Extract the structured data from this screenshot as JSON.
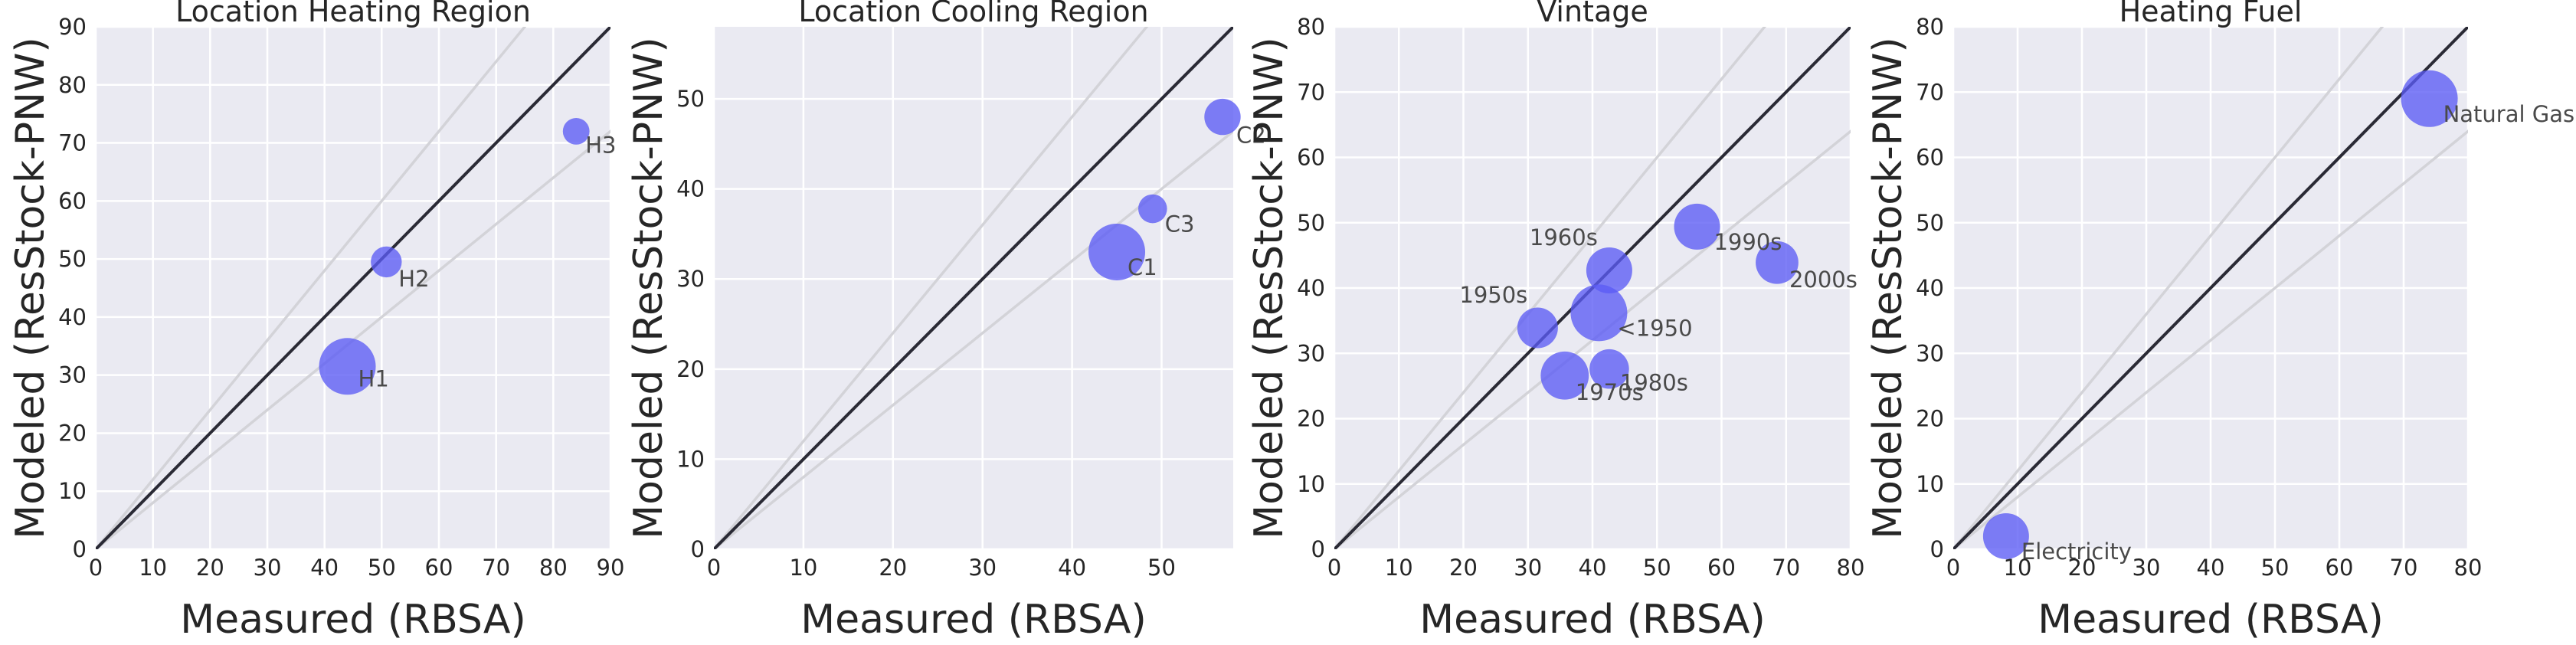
{
  "chart_data": [
    {
      "type": "scatter",
      "title": "Location Heating Region",
      "xlabel": "Measured (RBSA)",
      "ylabel": "Modeled (ResStock-PNW)",
      "xlim": [
        0,
        90
      ],
      "ylim": [
        0,
        90
      ],
      "xticks": [
        "0",
        "10",
        "20",
        "30",
        "40",
        "50",
        "60",
        "70",
        "80",
        "90"
      ],
      "yticks": [
        "0",
        "10",
        "20",
        "30",
        "40",
        "50",
        "60",
        "70",
        "80",
        "90"
      ],
      "grid": true,
      "reference_lines": [
        "y = x",
        "y = 1.2x",
        "y = 0.8x"
      ],
      "points": [
        {
          "label": "H1",
          "x": 44.0,
          "y": 31.5,
          "size": 4.0
        },
        {
          "label": "H2",
          "x": 50.8,
          "y": 49.5,
          "size": 1.6
        },
        {
          "label": "H3",
          "x": 84.0,
          "y": 72.0,
          "size": 1.2
        }
      ]
    },
    {
      "type": "scatter",
      "title": "Location Cooling Region",
      "xlabel": "Measured (RBSA)",
      "ylabel": "Modeled (ResStock-PNW)",
      "xlim": [
        0,
        58
      ],
      "ylim": [
        0,
        58
      ],
      "xticks": [
        "0",
        "10",
        "20",
        "30",
        "40",
        "50"
      ],
      "yticks": [
        "0",
        "10",
        "20",
        "30",
        "40",
        "50"
      ],
      "grid": true,
      "reference_lines": [
        "y = x",
        "y = 1.2x",
        "y = 0.8x"
      ],
      "points": [
        {
          "label": "C1",
          "x": 45.0,
          "y": 33.0,
          "size": 4.0
        },
        {
          "label": "C2",
          "x": 56.8,
          "y": 48.0,
          "size": 2.1
        },
        {
          "label": "C3",
          "x": 49.0,
          "y": 37.8,
          "size": 1.4
        }
      ]
    },
    {
      "type": "scatter",
      "title": "Vintage",
      "xlabel": "Measured (RBSA)",
      "ylabel": "Modeled (ResStock-PNW)",
      "xlim": [
        0,
        80
      ],
      "ylim": [
        0,
        80
      ],
      "xticks": [
        "0",
        "10",
        "20",
        "30",
        "40",
        "50",
        "60",
        "70",
        "80"
      ],
      "yticks": [
        "0",
        "10",
        "20",
        "30",
        "40",
        "50",
        "60",
        "70",
        "80"
      ],
      "grid": true,
      "reference_lines": [
        "y = x",
        "y = 1.2x",
        "y = 0.8x"
      ],
      "points": [
        {
          "label": "<1950",
          "x": 41.0,
          "y": 36.2,
          "size": 4.0
        },
        {
          "label": "1950s",
          "x": 31.5,
          "y": 33.9,
          "size": 2.5
        },
        {
          "label": "1960s",
          "x": 42.6,
          "y": 42.7,
          "size": 3.0
        },
        {
          "label": "1970s",
          "x": 35.7,
          "y": 26.6,
          "size": 3.2
        },
        {
          "label": "1980s",
          "x": 42.6,
          "y": 27.6,
          "size": 2.4
        },
        {
          "label": "1990s",
          "x": 56.2,
          "y": 49.4,
          "size": 3.0
        },
        {
          "label": "2000s",
          "x": 68.6,
          "y": 43.9,
          "size": 2.7
        }
      ]
    },
    {
      "type": "scatter",
      "title": "Heating Fuel",
      "xlabel": "Measured (RBSA)",
      "ylabel": "Modeled (ResStock-PNW)",
      "xlim": [
        0,
        80
      ],
      "ylim": [
        0,
        80
      ],
      "xticks": [
        "0",
        "10",
        "20",
        "30",
        "40",
        "50",
        "60",
        "70",
        "80"
      ],
      "yticks": [
        "0",
        "10",
        "20",
        "30",
        "40",
        "50",
        "60",
        "70",
        "80"
      ],
      "grid": true,
      "reference_lines": [
        "y = x",
        "y = 1.2x",
        "y = 0.8x"
      ],
      "points": [
        {
          "label": "Electricity",
          "x": 8.2,
          "y": 2.0,
          "size": 3.0
        },
        {
          "label": "Natural Gas",
          "x": 74.0,
          "y": 69.0,
          "size": 4.0
        }
      ]
    }
  ],
  "colors": {
    "panel_background": "#eaeaf2",
    "gridline": "#ffffff",
    "bubble": "#5b5bf5",
    "identity_line": "#2a2a35",
    "guide_line": "#d3d3d8"
  }
}
